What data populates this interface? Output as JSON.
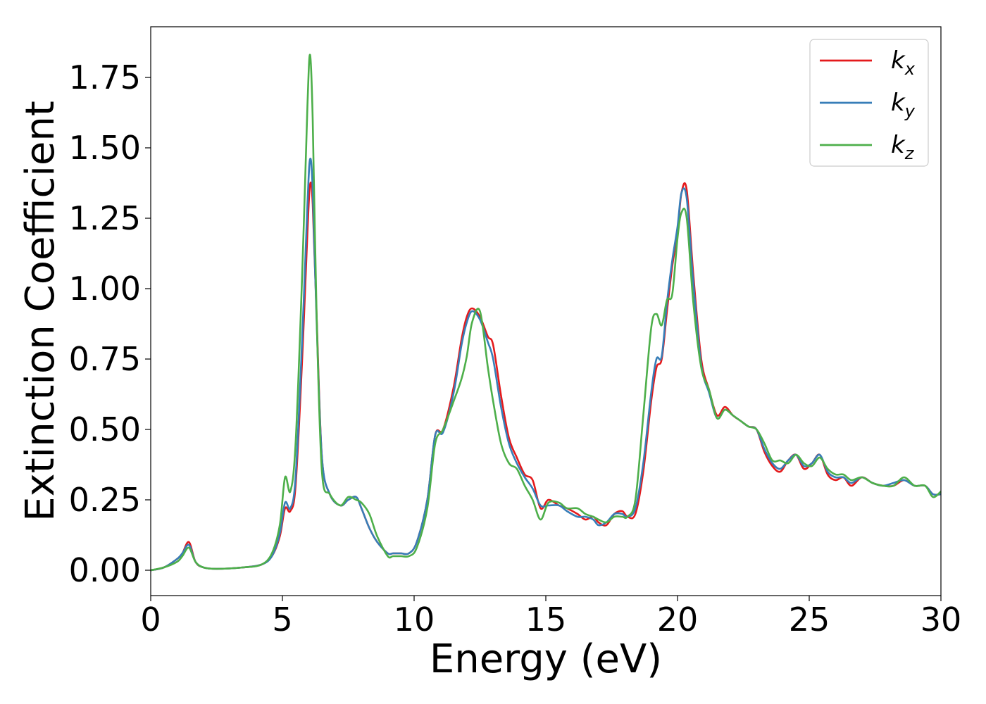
{
  "chart_data": {
    "type": "line",
    "xlabel": "Energy (eV)",
    "ylabel": "Extinction Coefficient",
    "xlim": [
      0,
      30
    ],
    "ylim": [
      -0.09,
      1.93
    ],
    "xticks": [
      0,
      5,
      10,
      15,
      20,
      25,
      30
    ],
    "xtick_labels": [
      "0",
      "5",
      "10",
      "15",
      "20",
      "25",
      "30"
    ],
    "yticks": [
      0,
      0.25,
      0.5,
      0.75,
      1.0,
      1.25,
      1.5,
      1.75
    ],
    "ytick_labels": [
      "0.00",
      "0.25",
      "0.50",
      "0.75",
      "1.00",
      "1.25",
      "1.50",
      "1.75"
    ],
    "grid": false,
    "legend_position": "top-right",
    "series": [
      {
        "name": "k",
        "subscript": "x",
        "color": "#e41a1c",
        "x": [
          0,
          0.5,
          1.0,
          1.2,
          1.45,
          1.7,
          2.0,
          2.5,
          3.5,
          4.2,
          4.6,
          4.9,
          5.1,
          5.3,
          5.5,
          5.75,
          5.95,
          6.05,
          6.15,
          6.3,
          6.5,
          6.8,
          7.2,
          7.5,
          7.8,
          8.0,
          8.3,
          8.6,
          9.0,
          9.2,
          9.5,
          9.8,
          10.1,
          10.5,
          10.8,
          11.1,
          11.5,
          11.8,
          12.0,
          12.2,
          12.5,
          12.8,
          13.0,
          13.3,
          13.6,
          13.9,
          14.2,
          14.5,
          14.8,
          15.1,
          15.5,
          15.8,
          16.2,
          16.5,
          16.8,
          17.0,
          17.3,
          17.6,
          17.9,
          18.1,
          18.4,
          18.7,
          19.0,
          19.2,
          19.4,
          19.6,
          19.8,
          20.0,
          20.15,
          20.35,
          20.6,
          20.9,
          21.2,
          21.5,
          21.8,
          22.1,
          22.4,
          22.7,
          23.0,
          23.3,
          23.6,
          23.9,
          24.2,
          24.5,
          24.8,
          25.1,
          25.4,
          25.7,
          26.0,
          26.3,
          26.6,
          27.0,
          27.4,
          27.8,
          28.2,
          28.6,
          29.0,
          29.4,
          29.7,
          30.0
        ],
        "y": [
          0.0,
          0.01,
          0.04,
          0.06,
          0.1,
          0.03,
          0.01,
          0.005,
          0.01,
          0.02,
          0.05,
          0.12,
          0.22,
          0.21,
          0.3,
          0.75,
          1.2,
          1.37,
          1.3,
          0.9,
          0.4,
          0.27,
          0.23,
          0.25,
          0.26,
          0.22,
          0.15,
          0.1,
          0.06,
          0.06,
          0.06,
          0.06,
          0.1,
          0.25,
          0.48,
          0.5,
          0.65,
          0.82,
          0.9,
          0.93,
          0.9,
          0.83,
          0.8,
          0.62,
          0.47,
          0.4,
          0.34,
          0.32,
          0.22,
          0.25,
          0.23,
          0.22,
          0.2,
          0.18,
          0.19,
          0.17,
          0.16,
          0.2,
          0.21,
          0.19,
          0.2,
          0.35,
          0.6,
          0.72,
          0.75,
          0.92,
          1.08,
          1.2,
          1.34,
          1.35,
          1.05,
          0.75,
          0.64,
          0.55,
          0.58,
          0.55,
          0.53,
          0.51,
          0.5,
          0.42,
          0.37,
          0.35,
          0.39,
          0.41,
          0.36,
          0.38,
          0.41,
          0.34,
          0.32,
          0.33,
          0.3,
          0.33,
          0.31,
          0.3,
          0.3,
          0.32,
          0.3,
          0.3,
          0.27,
          0.27
        ]
      },
      {
        "name": "k",
        "subscript": "y",
        "color": "#377eb8",
        "x": [
          0,
          0.5,
          1.0,
          1.2,
          1.45,
          1.7,
          2.0,
          2.5,
          3.5,
          4.2,
          4.6,
          4.9,
          5.1,
          5.3,
          5.5,
          5.75,
          5.95,
          6.05,
          6.15,
          6.3,
          6.5,
          6.8,
          7.2,
          7.5,
          7.8,
          8.0,
          8.3,
          8.6,
          9.0,
          9.2,
          9.5,
          9.8,
          10.1,
          10.5,
          10.8,
          11.1,
          11.5,
          11.8,
          12.0,
          12.2,
          12.5,
          12.8,
          13.0,
          13.3,
          13.6,
          13.9,
          14.2,
          14.5,
          14.8,
          15.1,
          15.5,
          15.8,
          16.2,
          16.5,
          16.8,
          17.0,
          17.3,
          17.6,
          17.9,
          18.1,
          18.4,
          18.7,
          19.0,
          19.2,
          19.4,
          19.6,
          19.8,
          20.0,
          20.15,
          20.35,
          20.6,
          20.9,
          21.2,
          21.5,
          21.8,
          22.1,
          22.4,
          22.7,
          23.0,
          23.3,
          23.6,
          23.9,
          24.2,
          24.5,
          24.8,
          25.1,
          25.4,
          25.7,
          26.0,
          26.3,
          26.6,
          27.0,
          27.4,
          27.8,
          28.2,
          28.6,
          29.0,
          29.4,
          29.7,
          30.0
        ],
        "y": [
          0.0,
          0.01,
          0.04,
          0.06,
          0.09,
          0.03,
          0.01,
          0.005,
          0.01,
          0.02,
          0.05,
          0.13,
          0.24,
          0.22,
          0.33,
          0.82,
          1.3,
          1.46,
          1.35,
          0.88,
          0.4,
          0.27,
          0.23,
          0.25,
          0.26,
          0.22,
          0.15,
          0.1,
          0.06,
          0.06,
          0.06,
          0.06,
          0.1,
          0.25,
          0.48,
          0.49,
          0.63,
          0.8,
          0.88,
          0.92,
          0.89,
          0.81,
          0.75,
          0.58,
          0.45,
          0.38,
          0.33,
          0.29,
          0.23,
          0.23,
          0.23,
          0.21,
          0.19,
          0.19,
          0.18,
          0.16,
          0.17,
          0.2,
          0.2,
          0.19,
          0.22,
          0.38,
          0.63,
          0.75,
          0.76,
          0.95,
          1.1,
          1.22,
          1.34,
          1.32,
          1.02,
          0.73,
          0.63,
          0.54,
          0.57,
          0.55,
          0.53,
          0.51,
          0.5,
          0.43,
          0.38,
          0.36,
          0.39,
          0.41,
          0.37,
          0.38,
          0.41,
          0.35,
          0.33,
          0.33,
          0.31,
          0.33,
          0.31,
          0.3,
          0.31,
          0.32,
          0.3,
          0.3,
          0.27,
          0.27
        ]
      },
      {
        "name": "k",
        "subscript": "z",
        "color": "#4daf4a",
        "x": [
          0,
          0.5,
          1.0,
          1.2,
          1.45,
          1.7,
          2.0,
          2.5,
          3.5,
          4.2,
          4.6,
          4.9,
          5.1,
          5.3,
          5.5,
          5.75,
          5.95,
          6.05,
          6.15,
          6.3,
          6.5,
          6.8,
          7.2,
          7.5,
          7.8,
          8.0,
          8.3,
          8.6,
          9.0,
          9.2,
          9.5,
          9.8,
          10.1,
          10.5,
          10.8,
          11.1,
          11.5,
          11.8,
          12.0,
          12.2,
          12.5,
          12.8,
          13.0,
          13.3,
          13.6,
          13.9,
          14.2,
          14.5,
          14.8,
          15.1,
          15.5,
          15.8,
          16.2,
          16.5,
          16.8,
          17.0,
          17.3,
          17.6,
          17.9,
          18.1,
          18.4,
          18.7,
          19.0,
          19.2,
          19.4,
          19.6,
          19.8,
          20.0,
          20.15,
          20.35,
          20.6,
          20.9,
          21.2,
          21.5,
          21.8,
          22.1,
          22.4,
          22.7,
          23.0,
          23.3,
          23.6,
          23.9,
          24.2,
          24.5,
          24.8,
          25.1,
          25.4,
          25.7,
          26.0,
          26.3,
          26.6,
          27.0,
          27.4,
          27.8,
          28.2,
          28.6,
          29.0,
          29.4,
          29.7,
          30.0
        ],
        "y": [
          0.0,
          0.01,
          0.03,
          0.05,
          0.08,
          0.03,
          0.01,
          0.005,
          0.01,
          0.02,
          0.06,
          0.16,
          0.33,
          0.28,
          0.45,
          1.05,
          1.65,
          1.83,
          1.6,
          0.9,
          0.35,
          0.27,
          0.23,
          0.26,
          0.25,
          0.24,
          0.2,
          0.12,
          0.05,
          0.05,
          0.05,
          0.05,
          0.08,
          0.22,
          0.45,
          0.5,
          0.6,
          0.68,
          0.76,
          0.88,
          0.92,
          0.72,
          0.6,
          0.45,
          0.38,
          0.36,
          0.3,
          0.25,
          0.18,
          0.24,
          0.24,
          0.22,
          0.22,
          0.2,
          0.19,
          0.18,
          0.17,
          0.19,
          0.19,
          0.19,
          0.25,
          0.55,
          0.86,
          0.91,
          0.87,
          0.96,
          0.98,
          1.18,
          1.27,
          1.25,
          0.95,
          0.72,
          0.64,
          0.54,
          0.57,
          0.55,
          0.53,
          0.51,
          0.5,
          0.45,
          0.39,
          0.39,
          0.38,
          0.41,
          0.38,
          0.37,
          0.4,
          0.36,
          0.34,
          0.34,
          0.32,
          0.33,
          0.31,
          0.3,
          0.3,
          0.33,
          0.3,
          0.3,
          0.26,
          0.28
        ]
      }
    ]
  }
}
